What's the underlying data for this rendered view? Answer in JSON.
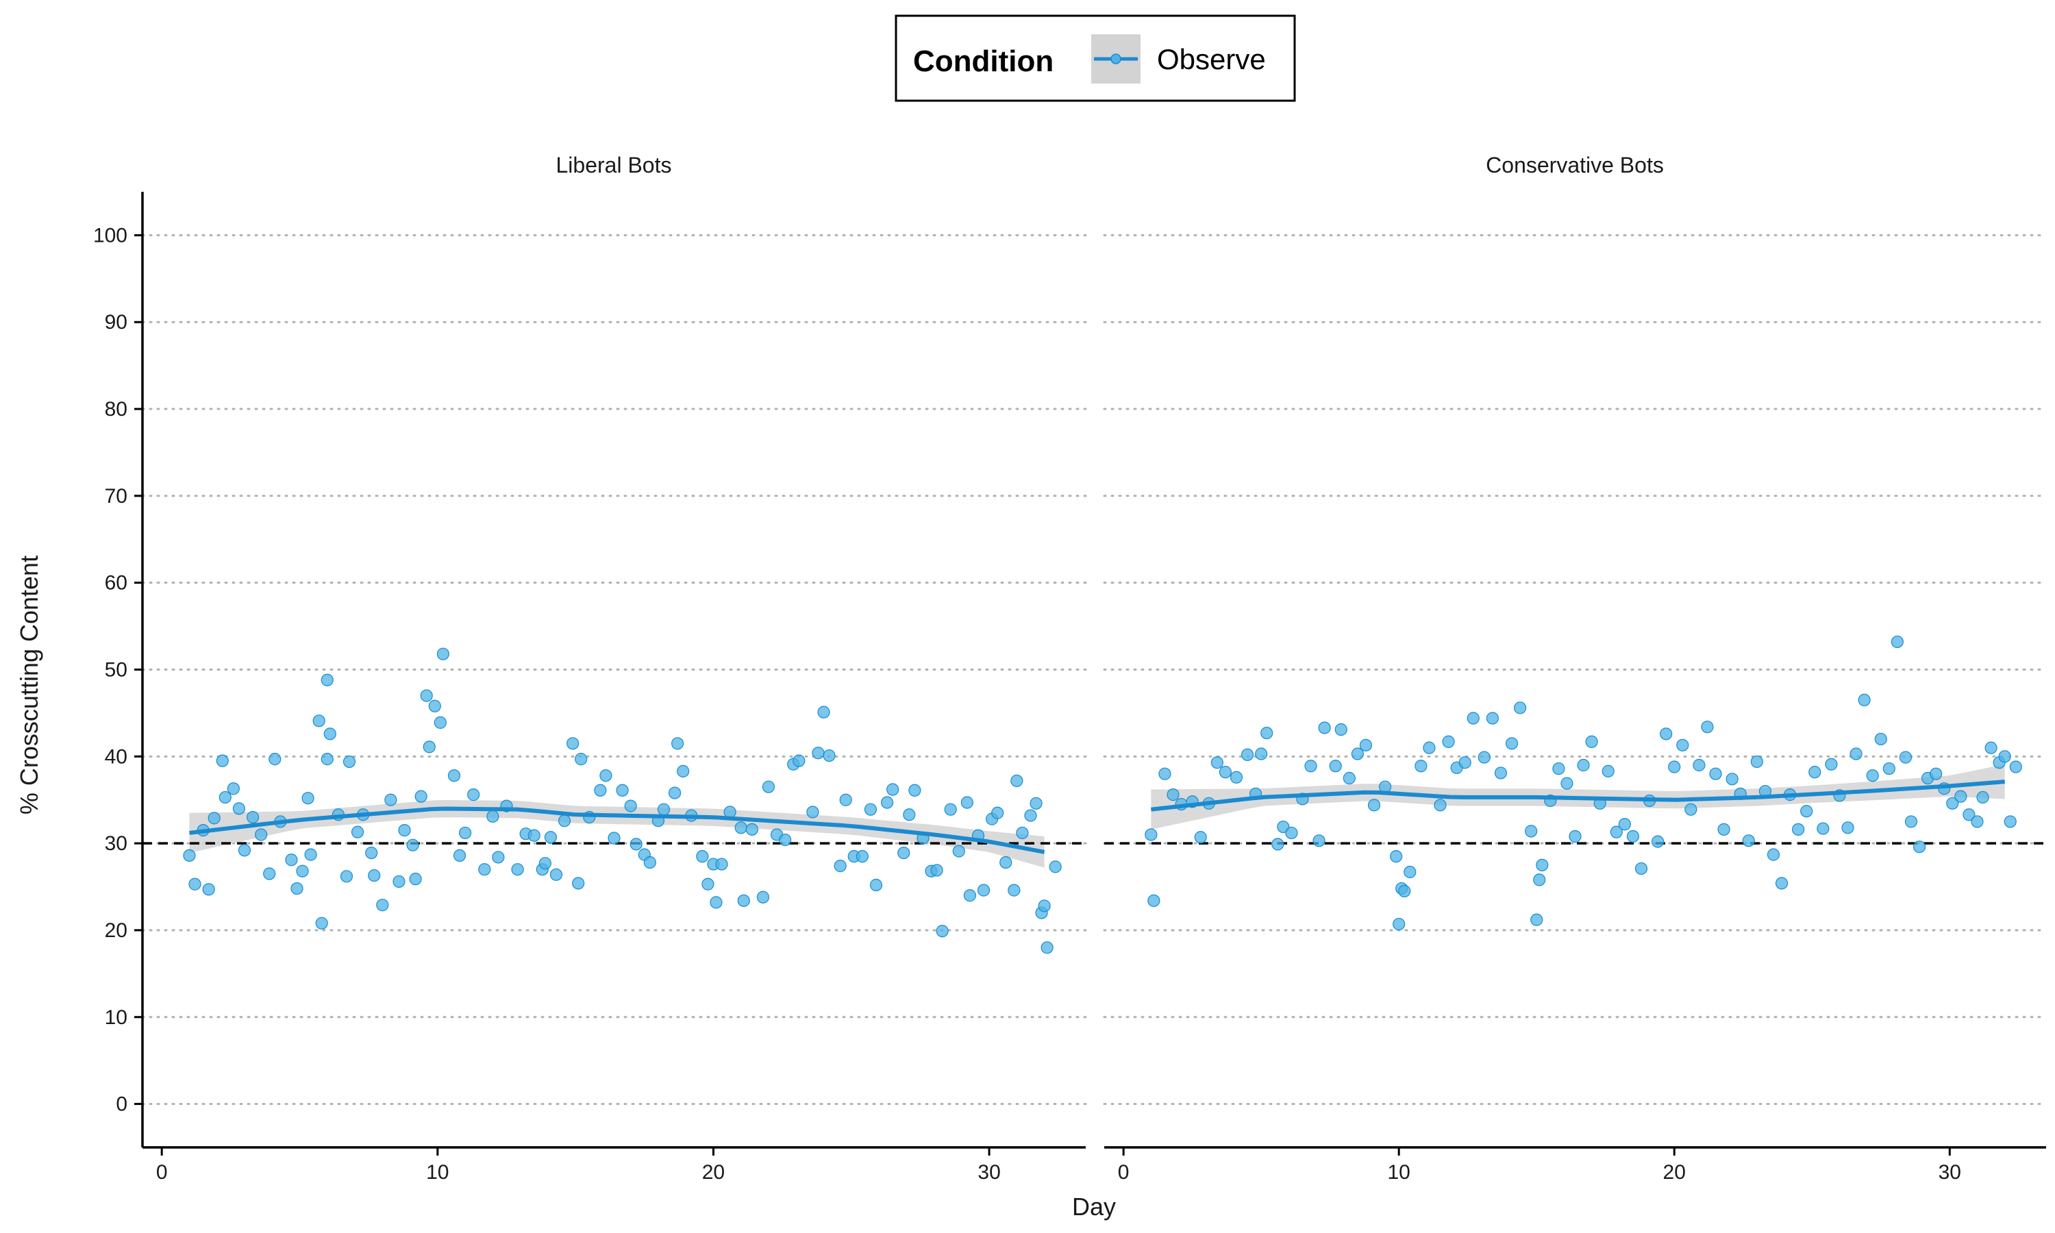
{
  "legend": {
    "title": "Condition",
    "items": [
      {
        "label": "Observe",
        "color": "#1B8AD0"
      }
    ],
    "position": "top"
  },
  "colors": {
    "point": "#4DB3E6",
    "point_edge": "#1B8AD0",
    "smooth_line": "#1B8AD0",
    "ribbon": "#D3D3D3",
    "reference_line": "#000000",
    "gridline": "#B0B0B0"
  },
  "chart_data": {
    "type": "scatter",
    "xlabel": "Day",
    "ylabel": "% Crosscutting Content",
    "xlim": [
      -0.7,
      33.5
    ],
    "ylim": [
      -5,
      105
    ],
    "x_ticks": [
      0,
      10,
      20,
      30
    ],
    "y_ticks": [
      0,
      10,
      20,
      30,
      40,
      50,
      60,
      70,
      80,
      90,
      100
    ],
    "grid": "horizontal dotted",
    "reference_line": {
      "y": 30,
      "style": "dashed"
    },
    "legend_placement": "top",
    "panels": [
      {
        "label": "Liberal Bots",
        "points": [
          [
            1,
            28.6
          ],
          [
            1.2,
            25.3
          ],
          [
            1.5,
            31.5
          ],
          [
            1.7,
            24.7
          ],
          [
            1.9,
            32.9
          ],
          [
            2.2,
            39.5
          ],
          [
            2.3,
            35.3
          ],
          [
            2.6,
            36.3
          ],
          [
            2.8,
            34.0
          ],
          [
            3.0,
            29.2
          ],
          [
            3.3,
            33.0
          ],
          [
            3.6,
            31.0
          ],
          [
            3.9,
            26.5
          ],
          [
            4.1,
            39.7
          ],
          [
            4.3,
            32.5
          ],
          [
            4.7,
            28.1
          ],
          [
            4.9,
            24.8
          ],
          [
            5.1,
            26.8
          ],
          [
            5.3,
            35.2
          ],
          [
            5.4,
            28.7
          ],
          [
            5.7,
            44.1
          ],
          [
            5.8,
            20.8
          ],
          [
            6.0,
            48.8
          ],
          [
            6.0,
            39.7
          ],
          [
            6.1,
            42.6
          ],
          [
            6.4,
            33.3
          ],
          [
            6.7,
            26.2
          ],
          [
            6.8,
            39.4
          ],
          [
            7.1,
            31.3
          ],
          [
            7.3,
            33.3
          ],
          [
            7.6,
            28.9
          ],
          [
            7.7,
            26.3
          ],
          [
            8.0,
            22.9
          ],
          [
            8.3,
            35.0
          ],
          [
            8.6,
            25.6
          ],
          [
            8.8,
            31.5
          ],
          [
            9.1,
            29.8
          ],
          [
            9.2,
            25.9
          ],
          [
            9.4,
            35.4
          ],
          [
            9.6,
            47.0
          ],
          [
            9.7,
            41.1
          ],
          [
            9.9,
            45.8
          ],
          [
            10.1,
            43.9
          ],
          [
            10.2,
            51.8
          ],
          [
            10.6,
            37.8
          ],
          [
            10.8,
            28.6
          ],
          [
            11.0,
            31.2
          ],
          [
            11.3,
            35.6
          ],
          [
            11.7,
            27.0
          ],
          [
            12.0,
            33.1
          ],
          [
            12.2,
            28.4
          ],
          [
            12.5,
            34.3
          ],
          [
            12.9,
            27.0
          ],
          [
            13.2,
            31.1
          ],
          [
            13.5,
            30.9
          ],
          [
            13.8,
            27.0
          ],
          [
            13.9,
            27.7
          ],
          [
            14.1,
            30.7
          ],
          [
            14.3,
            26.4
          ],
          [
            14.6,
            32.6
          ],
          [
            14.9,
            41.5
          ],
          [
            15.1,
            25.4
          ],
          [
            15.2,
            39.7
          ],
          [
            15.5,
            33.0
          ],
          [
            15.9,
            36.1
          ],
          [
            16.1,
            37.8
          ],
          [
            16.4,
            30.6
          ],
          [
            16.7,
            36.1
          ],
          [
            17.0,
            34.3
          ],
          [
            17.2,
            29.9
          ],
          [
            17.5,
            28.7
          ],
          [
            17.7,
            27.8
          ],
          [
            18.0,
            32.6
          ],
          [
            18.2,
            33.9
          ],
          [
            18.6,
            35.8
          ],
          [
            18.7,
            41.5
          ],
          [
            18.9,
            38.3
          ],
          [
            19.2,
            33.2
          ],
          [
            19.6,
            28.5
          ],
          [
            19.8,
            25.3
          ],
          [
            20.0,
            27.6
          ],
          [
            20.1,
            23.2
          ],
          [
            20.3,
            27.6
          ],
          [
            20.6,
            33.6
          ],
          [
            21.0,
            31.8
          ],
          [
            21.1,
            23.4
          ],
          [
            21.4,
            31.6
          ],
          [
            21.8,
            23.8
          ],
          [
            22.0,
            36.5
          ],
          [
            22.3,
            31.0
          ],
          [
            22.6,
            30.4
          ],
          [
            22.9,
            39.1
          ],
          [
            23.1,
            39.5
          ],
          [
            23.6,
            33.6
          ],
          [
            23.8,
            40.4
          ],
          [
            24.0,
            45.1
          ],
          [
            24.2,
            40.1
          ],
          [
            24.6,
            27.4
          ],
          [
            24.8,
            35.0
          ],
          [
            25.1,
            28.5
          ],
          [
            25.4,
            28.5
          ],
          [
            25.7,
            33.9
          ],
          [
            25.9,
            25.2
          ],
          [
            26.3,
            34.7
          ],
          [
            26.5,
            36.2
          ],
          [
            26.9,
            28.9
          ],
          [
            27.1,
            33.3
          ],
          [
            27.3,
            36.1
          ],
          [
            27.6,
            30.6
          ],
          [
            27.9,
            26.8
          ],
          [
            28.1,
            26.9
          ],
          [
            28.3,
            19.9
          ],
          [
            28.6,
            33.9
          ],
          [
            28.9,
            29.1
          ],
          [
            29.2,
            34.7
          ],
          [
            29.3,
            24.0
          ],
          [
            29.6,
            30.9
          ],
          [
            29.8,
            24.6
          ],
          [
            30.1,
            32.8
          ],
          [
            30.3,
            33.5
          ],
          [
            30.6,
            27.8
          ],
          [
            30.9,
            24.6
          ],
          [
            31.0,
            37.2
          ],
          [
            31.2,
            31.2
          ],
          [
            31.5,
            33.2
          ],
          [
            31.7,
            34.6
          ],
          [
            31.9,
            22.0
          ],
          [
            32.0,
            22.8
          ],
          [
            32.1,
            18.0
          ],
          [
            32.4,
            27.3
          ]
        ],
        "smooth": [
          [
            1,
            31.2
          ],
          [
            5,
            32.7
          ],
          [
            10,
            34.0
          ],
          [
            13,
            33.9
          ],
          [
            15,
            33.3
          ],
          [
            20,
            33.0
          ],
          [
            25,
            32.0
          ],
          [
            28,
            31.0
          ],
          [
            30,
            30.2
          ],
          [
            32,
            29.0
          ]
        ],
        "ribbon_halfwidth": [
          [
            1,
            2.3
          ],
          [
            5,
            1.0
          ],
          [
            10,
            1.0
          ],
          [
            15,
            1.0
          ],
          [
            20,
            1.0
          ],
          [
            25,
            1.0
          ],
          [
            30,
            1.2
          ],
          [
            32,
            1.8
          ]
        ]
      },
      {
        "label": "Conservative Bots",
        "points": [
          [
            1,
            31.0
          ],
          [
            1.1,
            23.4
          ],
          [
            1.5,
            38.0
          ],
          [
            1.8,
            35.6
          ],
          [
            2.1,
            34.5
          ],
          [
            2.5,
            34.8
          ],
          [
            2.8,
            30.7
          ],
          [
            3.1,
            34.6
          ],
          [
            3.4,
            39.3
          ],
          [
            3.7,
            38.2
          ],
          [
            4.1,
            37.6
          ],
          [
            4.5,
            40.2
          ],
          [
            4.8,
            35.7
          ],
          [
            5.0,
            40.3
          ],
          [
            5.2,
            42.7
          ],
          [
            5.6,
            29.9
          ],
          [
            5.8,
            31.9
          ],
          [
            6.1,
            31.2
          ],
          [
            6.5,
            35.1
          ],
          [
            6.8,
            38.9
          ],
          [
            7.1,
            30.3
          ],
          [
            7.3,
            43.3
          ],
          [
            7.7,
            38.9
          ],
          [
            7.9,
            43.1
          ],
          [
            8.2,
            37.5
          ],
          [
            8.5,
            40.3
          ],
          [
            8.8,
            41.3
          ],
          [
            9.1,
            34.4
          ],
          [
            9.5,
            36.5
          ],
          [
            9.9,
            28.5
          ],
          [
            10.0,
            20.7
          ],
          [
            10.1,
            24.8
          ],
          [
            10.2,
            24.5
          ],
          [
            10.4,
            26.7
          ],
          [
            10.8,
            38.9
          ],
          [
            11.1,
            41.0
          ],
          [
            11.5,
            34.4
          ],
          [
            11.8,
            41.7
          ],
          [
            12.1,
            38.7
          ],
          [
            12.4,
            39.3
          ],
          [
            12.7,
            44.4
          ],
          [
            13.1,
            39.9
          ],
          [
            13.4,
            44.4
          ],
          [
            13.7,
            38.1
          ],
          [
            14.1,
            41.5
          ],
          [
            14.4,
            45.6
          ],
          [
            14.8,
            31.4
          ],
          [
            15.0,
            21.2
          ],
          [
            15.1,
            25.8
          ],
          [
            15.2,
            27.5
          ],
          [
            15.5,
            34.9
          ],
          [
            15.8,
            38.6
          ],
          [
            16.1,
            36.9
          ],
          [
            16.4,
            30.8
          ],
          [
            16.7,
            39.0
          ],
          [
            17.0,
            41.7
          ],
          [
            17.3,
            34.6
          ],
          [
            17.6,
            38.3
          ],
          [
            17.9,
            31.3
          ],
          [
            18.2,
            32.2
          ],
          [
            18.5,
            30.8
          ],
          [
            18.8,
            27.1
          ],
          [
            19.1,
            34.9
          ],
          [
            19.4,
            30.2
          ],
          [
            19.7,
            42.6
          ],
          [
            20.0,
            38.8
          ],
          [
            20.3,
            41.3
          ],
          [
            20.6,
            33.9
          ],
          [
            20.9,
            39.0
          ],
          [
            21.2,
            43.4
          ],
          [
            21.5,
            38.0
          ],
          [
            21.8,
            31.6
          ],
          [
            22.1,
            37.4
          ],
          [
            22.4,
            35.7
          ],
          [
            22.7,
            30.3
          ],
          [
            23.0,
            39.4
          ],
          [
            23.3,
            36.0
          ],
          [
            23.6,
            28.7
          ],
          [
            23.9,
            25.4
          ],
          [
            24.2,
            35.6
          ],
          [
            24.5,
            31.6
          ],
          [
            24.8,
            33.7
          ],
          [
            25.1,
            38.2
          ],
          [
            25.4,
            31.7
          ],
          [
            25.7,
            39.1
          ],
          [
            26.0,
            35.5
          ],
          [
            26.3,
            31.8
          ],
          [
            26.6,
            40.3
          ],
          [
            26.9,
            46.5
          ],
          [
            27.2,
            37.8
          ],
          [
            27.5,
            42.0
          ],
          [
            27.8,
            38.6
          ],
          [
            28.1,
            53.2
          ],
          [
            28.4,
            39.9
          ],
          [
            28.6,
            32.5
          ],
          [
            28.9,
            29.6
          ],
          [
            29.2,
            37.5
          ],
          [
            29.5,
            38.0
          ],
          [
            29.8,
            36.3
          ],
          [
            30.1,
            34.6
          ],
          [
            30.4,
            35.4
          ],
          [
            30.7,
            33.3
          ],
          [
            31.0,
            32.5
          ],
          [
            31.2,
            35.3
          ],
          [
            31.5,
            41.0
          ],
          [
            31.8,
            39.3
          ],
          [
            32.0,
            40.0
          ],
          [
            32.2,
            32.5
          ],
          [
            32.4,
            38.8
          ]
        ],
        "smooth": [
          [
            1,
            33.9
          ],
          [
            5,
            35.3
          ],
          [
            9,
            35.9
          ],
          [
            12,
            35.3
          ],
          [
            15,
            35.3
          ],
          [
            20,
            35.0
          ],
          [
            23,
            35.3
          ],
          [
            27,
            36.0
          ],
          [
            30,
            36.6
          ],
          [
            32,
            37.1
          ]
        ],
        "ribbon_halfwidth": [
          [
            1,
            2.3
          ],
          [
            5,
            1.0
          ],
          [
            10,
            1.0
          ],
          [
            15,
            1.0
          ],
          [
            20,
            1.0
          ],
          [
            25,
            1.0
          ],
          [
            30,
            1.2
          ],
          [
            32,
            2.0
          ]
        ]
      }
    ]
  }
}
